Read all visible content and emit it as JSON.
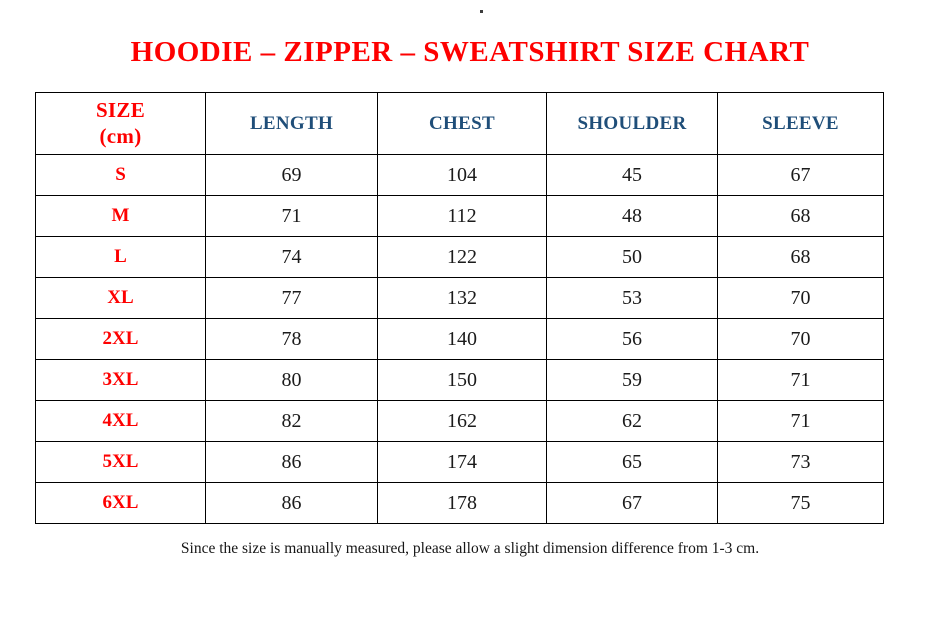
{
  "title": "HOODIE – ZIPPER – SWEATSHIRT SIZE CHART",
  "stray_mark": ".",
  "table": {
    "header": {
      "size_label": "SIZE",
      "size_unit": "(cm)",
      "columns": [
        "LENGTH",
        "CHEST",
        "SHOULDER",
        "SLEEVE"
      ]
    },
    "rows": [
      {
        "size": "S",
        "values": [
          "69",
          "104",
          "45",
          "67"
        ]
      },
      {
        "size": "M",
        "values": [
          "71",
          "112",
          "48",
          "68"
        ]
      },
      {
        "size": "L",
        "values": [
          "74",
          "122",
          "50",
          "68"
        ]
      },
      {
        "size": "XL",
        "values": [
          "77",
          "132",
          "53",
          "70"
        ]
      },
      {
        "size": "2XL",
        "values": [
          "78",
          "140",
          "56",
          "70"
        ]
      },
      {
        "size": "3XL",
        "values": [
          "80",
          "150",
          "59",
          "71"
        ]
      },
      {
        "size": "4XL",
        "values": [
          "82",
          "162",
          "62",
          "71"
        ]
      },
      {
        "size": "5XL",
        "values": [
          "86",
          "174",
          "65",
          "73"
        ]
      },
      {
        "size": "6XL",
        "values": [
          "86",
          "178",
          "67",
          "75"
        ]
      }
    ]
  },
  "footnote": "Since the size is manually measured, please allow a slight dimension difference from 1-3 cm.",
  "colors": {
    "title_red": "#FE0000",
    "header_blue": "#1F4E79",
    "body_text": "#1B1B1B",
    "border": "#000000",
    "background": "#FFFFFF"
  }
}
